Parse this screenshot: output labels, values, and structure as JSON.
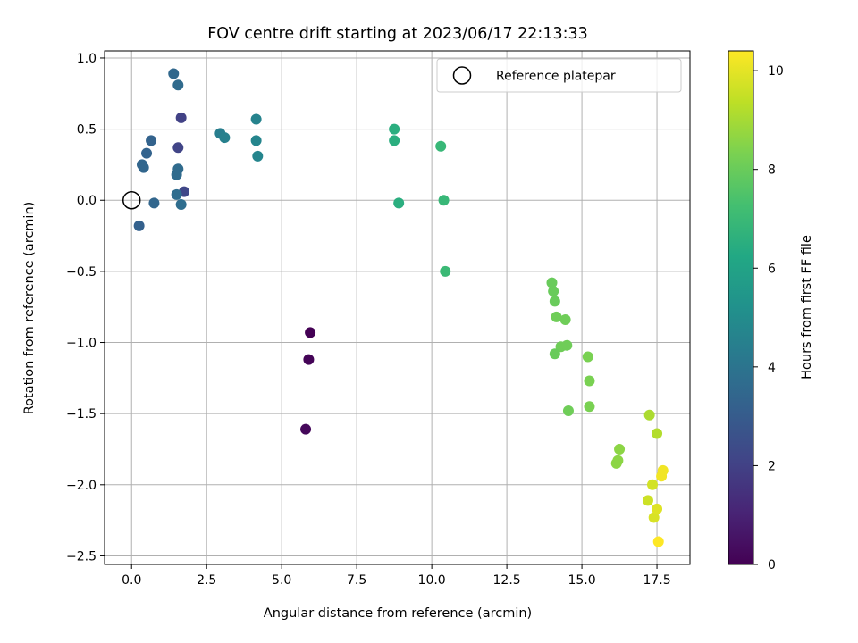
{
  "chart_data": {
    "type": "scatter",
    "title": "FOV centre drift starting at 2023/06/17 22:13:33",
    "xlabel": "Angular distance from reference (arcmin)",
    "ylabel": "Rotation from reference (arcmin)",
    "xlim": [
      -0.9,
      18.6
    ],
    "ylim": [
      -2.56,
      1.05
    ],
    "x_ticks": [
      0.0,
      2.5,
      5.0,
      7.5,
      10.0,
      12.5,
      15.0,
      17.5
    ],
    "x_tick_labels": [
      "0.0",
      "2.5",
      "5.0",
      "7.5",
      "10.0",
      "12.5",
      "15.0",
      "17.5"
    ],
    "y_ticks": [
      1.0,
      0.5,
      0.0,
      -0.5,
      -1.0,
      -1.5,
      -2.0,
      -2.5
    ],
    "y_tick_labels": [
      "1.0",
      "0.5",
      "0.0",
      "−0.5",
      "−1.0",
      "−1.5",
      "−2.0",
      "−2.5"
    ],
    "grid": true,
    "legend": {
      "position": "top-right",
      "entries": [
        {
          "label": "Reference platepar",
          "marker": "open-circle"
        }
      ]
    },
    "reference_point": {
      "x": 0.0,
      "y": 0.0
    },
    "colorbar": {
      "label": "Hours from first FF file",
      "colormap": "viridis",
      "range": [
        0,
        10.4
      ],
      "ticks": [
        0,
        2,
        4,
        6,
        8,
        10
      ],
      "tick_labels": [
        "0",
        "2",
        "4",
        "6",
        "8",
        "10"
      ]
    },
    "points": [
      {
        "x": 5.95,
        "y": -0.93,
        "hours": 0.0
      },
      {
        "x": 5.9,
        "y": -1.12,
        "hours": 0.1
      },
      {
        "x": 5.8,
        "y": -1.61,
        "hours": 0.2
      },
      {
        "x": 1.65,
        "y": 0.58,
        "hours": 2.0
      },
      {
        "x": 1.55,
        "y": 0.37,
        "hours": 2.1
      },
      {
        "x": 1.75,
        "y": 0.06,
        "hours": 2.2
      },
      {
        "x": 0.65,
        "y": 0.42,
        "hours": 3.3
      },
      {
        "x": 0.5,
        "y": 0.33,
        "hours": 3.3
      },
      {
        "x": 0.35,
        "y": 0.25,
        "hours": 3.4
      },
      {
        "x": 0.4,
        "y": 0.23,
        "hours": 3.4
      },
      {
        "x": 0.25,
        "y": -0.18,
        "hours": 3.2
      },
      {
        "x": 0.75,
        "y": -0.02,
        "hours": 3.4
      },
      {
        "x": 1.4,
        "y": 0.89,
        "hours": 3.5
      },
      {
        "x": 1.55,
        "y": 0.81,
        "hours": 3.6
      },
      {
        "x": 1.55,
        "y": 0.22,
        "hours": 3.6
      },
      {
        "x": 1.5,
        "y": 0.18,
        "hours": 3.6
      },
      {
        "x": 1.5,
        "y": 0.04,
        "hours": 3.7
      },
      {
        "x": 1.65,
        "y": -0.03,
        "hours": 3.7
      },
      {
        "x": 2.95,
        "y": 0.47,
        "hours": 4.4
      },
      {
        "x": 3.1,
        "y": 0.44,
        "hours": 4.5
      },
      {
        "x": 4.15,
        "y": 0.57,
        "hours": 4.6
      },
      {
        "x": 4.15,
        "y": 0.42,
        "hours": 4.7
      },
      {
        "x": 4.2,
        "y": 0.31,
        "hours": 4.7
      },
      {
        "x": 8.75,
        "y": 0.5,
        "hours": 6.5
      },
      {
        "x": 8.75,
        "y": 0.42,
        "hours": 6.5
      },
      {
        "x": 8.9,
        "y": -0.02,
        "hours": 6.5
      },
      {
        "x": 10.3,
        "y": 0.38,
        "hours": 6.9
      },
      {
        "x": 10.4,
        "y": 0.0,
        "hours": 6.9
      },
      {
        "x": 10.45,
        "y": -0.5,
        "hours": 7.0
      },
      {
        "x": 14.0,
        "y": -0.58,
        "hours": 8.0
      },
      {
        "x": 14.05,
        "y": -0.64,
        "hours": 8.0
      },
      {
        "x": 14.1,
        "y": -0.71,
        "hours": 8.0
      },
      {
        "x": 14.15,
        "y": -0.82,
        "hours": 8.1
      },
      {
        "x": 14.45,
        "y": -0.84,
        "hours": 8.1
      },
      {
        "x": 14.3,
        "y": -1.03,
        "hours": 8.1
      },
      {
        "x": 14.5,
        "y": -1.02,
        "hours": 8.1
      },
      {
        "x": 14.1,
        "y": -1.08,
        "hours": 8.0
      },
      {
        "x": 14.55,
        "y": -1.48,
        "hours": 8.1
      },
      {
        "x": 15.2,
        "y": -1.1,
        "hours": 8.3
      },
      {
        "x": 15.25,
        "y": -1.27,
        "hours": 8.3
      },
      {
        "x": 15.25,
        "y": -1.45,
        "hours": 8.3
      },
      {
        "x": 16.25,
        "y": -1.75,
        "hours": 8.6
      },
      {
        "x": 16.2,
        "y": -1.83,
        "hours": 8.6
      },
      {
        "x": 16.15,
        "y": -1.85,
        "hours": 8.6
      },
      {
        "x": 17.25,
        "y": -1.51,
        "hours": 9.1
      },
      {
        "x": 17.5,
        "y": -1.64,
        "hours": 9.2
      },
      {
        "x": 17.2,
        "y": -2.11,
        "hours": 9.6
      },
      {
        "x": 17.35,
        "y": -2.0,
        "hours": 9.7
      },
      {
        "x": 17.4,
        "y": -2.23,
        "hours": 9.8
      },
      {
        "x": 17.5,
        "y": -2.17,
        "hours": 9.9
      },
      {
        "x": 17.7,
        "y": -1.9,
        "hours": 10.2
      },
      {
        "x": 17.65,
        "y": -1.94,
        "hours": 10.2
      },
      {
        "x": 17.55,
        "y": -2.4,
        "hours": 10.4
      }
    ]
  }
}
